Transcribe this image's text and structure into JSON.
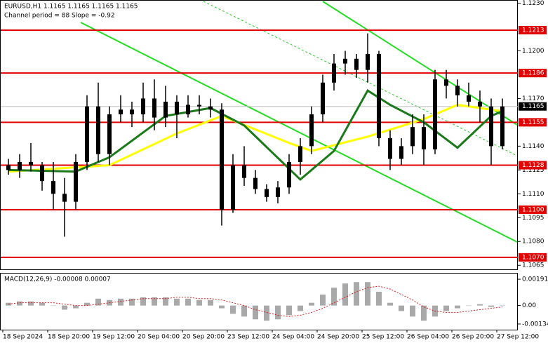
{
  "header": {
    "symbol_line": "EURUSD,H1  1.1165 1.1165 1.1165 1.1165",
    "channel": "Channel period = 88 Slope = -0.92"
  },
  "chart_data": [
    {
      "type": "candlestick",
      "ylim": [
        1.1062,
        1.1232
      ],
      "yticks": [
        {
          "value": 1.123,
          "label": "1.1230"
        },
        {
          "value": 1.12,
          "label": "1.1200"
        },
        {
          "value": 1.117,
          "label": "1.1170"
        },
        {
          "value": 1.114,
          "label": "1.1140"
        },
        1.1125,
        {
          "value": 1.111,
          "label": "1.1110"
        },
        1.1095,
        {
          "value": 1.108,
          "label": "1.1080"
        },
        1.1065
      ],
      "candle_color": "#000000",
      "candles": [
        [
          1.1128,
          1.1132,
          1.1122,
          1.1125
        ],
        [
          1.1125,
          1.1135,
          1.112,
          1.113
        ],
        [
          1.113,
          1.1142,
          1.1124,
          1.1128
        ],
        [
          1.1128,
          1.113,
          1.1112,
          1.1118
        ],
        [
          1.1118,
          1.113,
          1.11,
          1.111
        ],
        [
          1.111,
          1.112,
          1.1083,
          1.1105
        ],
        [
          1.1105,
          1.1135,
          1.11,
          1.113
        ],
        [
          1.113,
          1.1172,
          1.1125,
          1.1165
        ],
        [
          1.1165,
          1.118,
          1.113,
          1.1135
        ],
        [
          1.1135,
          1.1165,
          1.1128,
          1.116
        ],
        [
          1.116,
          1.1172,
          1.1155,
          1.1163
        ],
        [
          1.1163,
          1.1168,
          1.1152,
          1.116
        ],
        [
          1.116,
          1.118,
          1.1155,
          1.117
        ],
        [
          1.117,
          1.1182,
          1.115,
          1.1158
        ],
        [
          1.1158,
          1.1178,
          1.1152,
          1.1168
        ],
        [
          1.1168,
          1.1172,
          1.1145,
          1.116
        ],
        [
          1.116,
          1.1172,
          1.1158,
          1.1166
        ],
        [
          1.1166,
          1.1172,
          1.116,
          1.1165
        ],
        [
          1.1165,
          1.117,
          1.1158,
          1.1163
        ],
        [
          1.1163,
          1.1167,
          1.109,
          1.11
        ],
        [
          1.11,
          1.1135,
          1.1098,
          1.1128
        ],
        [
          1.1128,
          1.114,
          1.1115,
          1.112
        ],
        [
          1.112,
          1.1125,
          1.111,
          1.1113
        ],
        [
          1.1113,
          1.1116,
          1.1105,
          1.1108
        ],
        [
          1.1108,
          1.1118,
          1.1104,
          1.1114
        ],
        [
          1.1114,
          1.1135,
          1.111,
          1.113
        ],
        [
          1.113,
          1.1145,
          1.1122,
          1.114
        ],
        [
          1.114,
          1.1165,
          1.1135,
          1.116
        ],
        [
          1.116,
          1.1185,
          1.1155,
          1.118
        ],
        [
          1.118,
          1.1198,
          1.1175,
          1.1192
        ],
        [
          1.1192,
          1.12,
          1.1185,
          1.1195
        ],
        [
          1.1195,
          1.1198,
          1.1183,
          1.1188
        ],
        [
          1.1188,
          1.1211,
          1.118,
          1.1198
        ],
        [
          1.1198,
          1.12,
          1.114,
          1.1145
        ],
        [
          1.1145,
          1.115,
          1.1125,
          1.1132
        ],
        [
          1.1132,
          1.1145,
          1.1128,
          1.114
        ],
        [
          1.114,
          1.116,
          1.1135,
          1.1152
        ],
        [
          1.1152,
          1.116,
          1.1128,
          1.1138
        ],
        [
          1.1138,
          1.1188,
          1.1135,
          1.1182
        ],
        [
          1.1182,
          1.1188,
          1.117,
          1.1178
        ],
        [
          1.1178,
          1.1182,
          1.1165,
          1.1172
        ],
        [
          1.1172,
          1.118,
          1.1165,
          1.1168
        ],
        [
          1.1168,
          1.1175,
          1.1155,
          1.1165
        ],
        [
          1.1165,
          1.117,
          1.1128,
          1.114
        ],
        [
          1.114,
          1.117,
          1.1138,
          1.1165
        ]
      ],
      "series": [
        {
          "color": "#ffff00",
          "x": [
            0,
            9,
            15,
            19,
            25,
            27,
            32,
            37,
            40,
            44
          ],
          "values": [
            1.1124,
            1.1128,
            1.1148,
            1.1159,
            1.1142,
            1.1137,
            1.1146,
            1.1157,
            1.1166,
            1.1162
          ]
        },
        {
          "color": "#1a7a1a",
          "x": [
            0,
            6,
            9,
            14,
            18,
            21,
            26,
            29,
            32,
            34,
            37,
            40,
            43,
            44
          ],
          "values": [
            1.1125,
            1.1124,
            1.1133,
            1.1159,
            1.1164,
            1.1153,
            1.1119,
            1.1137,
            1.1175,
            1.1166,
            1.1155,
            1.1139,
            1.1159,
            1.1162
          ]
        }
      ],
      "levels": [
        {
          "value": 1.1213,
          "label": "1.1213"
        },
        {
          "value": 1.1186,
          "label": "1.1186"
        },
        {
          "value": 1.1155,
          "label": "1.1155"
        },
        {
          "value": 1.1128,
          "label": "1.1128"
        },
        {
          "value": 1.11,
          "label": "1.1100"
        },
        {
          "value": 1.107,
          "label": "1.1070"
        }
      ],
      "level_color": "#e00000",
      "current": {
        "value": 1.1165,
        "label": "1.1165"
      },
      "xlabels": [
        "18 Sep 2024",
        "18 Sep 20:00",
        "19 Sep 12:00",
        "20 Sep 04:00",
        "20 Sep 20:00",
        "23 Sep 12:00",
        "24 Sep 04:00",
        "24 Sep 20:00",
        "25 Sep 12:00",
        "26 Sep 04:00",
        "26 Sep 20:00",
        "27 Sep 12:00"
      ]
    },
    {
      "type": "macd",
      "title": "MACD(12,26,9) -0.00008 0.00007",
      "ylim": [
        -0.00175,
        0.00232
      ],
      "yticks": [
        0.00191,
        {
          "value": 0,
          "label": "0.00"
        },
        -0.00134
      ],
      "histogram": {
        "color": "#a9a9a9",
        "values": [
          0.0002,
          0.0003,
          0.0003,
          0.0002,
          0.0,
          -0.0003,
          -0.0002,
          0.0002,
          0.0005,
          0.0004,
          0.0005,
          0.0005,
          0.0006,
          0.0006,
          0.0006,
          0.0005,
          0.0005,
          0.0004,
          0.0004,
          -0.0002,
          -0.0006,
          -0.0008,
          -0.001,
          -0.0011,
          -0.001,
          -0.0007,
          -0.0004,
          0.0002,
          0.0008,
          0.0013,
          0.0016,
          0.0017,
          0.0017,
          0.001,
          0.0002,
          -0.0004,
          -0.0008,
          -0.0011,
          -0.0008,
          -0.0004,
          -0.0002,
          0.0,
          0.0001,
          -0.0001,
          0.0
        ]
      },
      "signal": {
        "color": "#e02020",
        "values": [
          0.0001,
          0.0002,
          0.0002,
          0.0002,
          0.0002,
          0.0001,
          0.0,
          0.0,
          0.0001,
          0.0002,
          0.0003,
          0.0004,
          0.0005,
          0.0005,
          0.0005,
          0.0006,
          0.0006,
          0.0005,
          0.0005,
          0.0004,
          0.0002,
          0.0,
          -0.0003,
          -0.0005,
          -0.0007,
          -0.0008,
          -0.0007,
          -0.0005,
          -0.0002,
          0.0002,
          0.0006,
          0.001,
          0.0013,
          0.0014,
          0.0012,
          0.0008,
          0.0004,
          -0.0001,
          -0.0004,
          -0.0005,
          -0.0005,
          -0.0004,
          -0.0003,
          -0.0002,
          -0.0001
        ]
      }
    }
  ]
}
